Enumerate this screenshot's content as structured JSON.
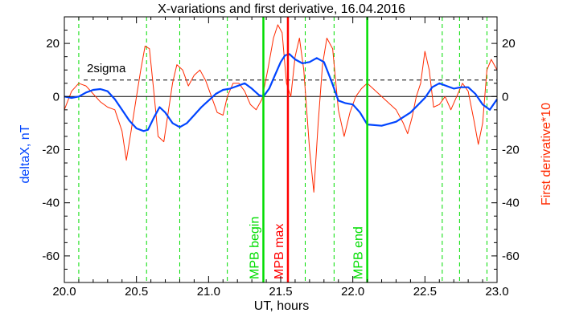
{
  "chart_data": {
    "type": "line",
    "title": "X-variations and first derivative, 16.04.2016",
    "xlabel": "UT, hours",
    "ylabel_left": "deltaX, nT",
    "ylabel_right": "First derivative*10",
    "xlim": [
      20.0,
      23.0
    ],
    "ylim": [
      -70,
      30
    ],
    "x_ticks": [
      20.0,
      20.5,
      21.0,
      21.5,
      22.0,
      22.5,
      23.0
    ],
    "x_tick_labels": [
      "20.0",
      "20.5",
      "21.0",
      "21.5",
      "22.0",
      "22.5",
      "23.0"
    ],
    "y_ticks": [
      20,
      0,
      -20,
      -40,
      -60
    ],
    "y_tick_labels": [
      "20",
      "0",
      "-20",
      "-40",
      "-60"
    ],
    "sigma_level": 6.2,
    "sigma_label": "2sigma",
    "dashed_verticals": [
      20.1,
      20.57,
      20.8,
      21.13,
      21.67,
      21.87,
      22.62,
      22.74,
      22.93
    ],
    "markers": [
      {
        "x": 21.38,
        "label": "MPB begin",
        "color": "#00dd00"
      },
      {
        "x": 21.55,
        "label": "MPB max",
        "color": "#ff0000"
      },
      {
        "x": 22.1,
        "label": "MPB end",
        "color": "#00dd00"
      }
    ],
    "colors": {
      "deltaX": "#0044ff",
      "derivative": "#ff2a00",
      "left_axis_label": "#0044ff",
      "right_axis_label": "#ff2a00",
      "green": "#00dd00",
      "red": "#ff0000"
    },
    "series": [
      {
        "key": "deltaX",
        "x": [
          20.0,
          20.05,
          20.1,
          20.15,
          20.2,
          20.25,
          20.3,
          20.35,
          20.4,
          20.45,
          20.5,
          20.55,
          20.58,
          20.62,
          20.66,
          20.7,
          20.75,
          20.8,
          20.85,
          20.9,
          20.95,
          21.0,
          21.05,
          21.1,
          21.15,
          21.2,
          21.25,
          21.3,
          21.35,
          21.38,
          21.42,
          21.46,
          21.5,
          21.53,
          21.56,
          21.6,
          21.65,
          21.7,
          21.75,
          21.8,
          21.85,
          21.9,
          21.95,
          22.0,
          22.05,
          22.1,
          22.2,
          22.3,
          22.4,
          22.5,
          22.55,
          22.6,
          22.65,
          22.7,
          22.75,
          22.8,
          22.85,
          22.9,
          22.95,
          23.0
        ],
        "y": [
          0,
          -0.5,
          0,
          1.5,
          2.5,
          2.8,
          2.0,
          -1.0,
          -5.0,
          -9.0,
          -12.0,
          -13.0,
          -12.5,
          -8.0,
          -4.0,
          -6.0,
          -10.0,
          -11.5,
          -10.0,
          -7.0,
          -4.0,
          -1.5,
          1.0,
          2.5,
          3.0,
          4.0,
          5.0,
          3.0,
          0.5,
          0.0,
          3.0,
          8.0,
          13.0,
          15.5,
          16.0,
          14.0,
          12.5,
          13.0,
          14.5,
          13.0,
          6.0,
          -1.5,
          -2.5,
          -3.0,
          -6.0,
          -10.5,
          -11.0,
          -9.5,
          -6.0,
          -0.5,
          3.5,
          5.0,
          4.0,
          3.0,
          3.5,
          3.5,
          1.0,
          -3.0,
          -5.0,
          -1.0
        ]
      },
      {
        "key": "derivative",
        "x": [
          20.0,
          20.05,
          20.1,
          20.15,
          20.2,
          20.25,
          20.3,
          20.35,
          20.4,
          20.43,
          20.46,
          20.5,
          20.53,
          20.56,
          20.59,
          20.62,
          20.65,
          20.69,
          20.72,
          20.75,
          20.78,
          20.82,
          20.86,
          20.9,
          20.94,
          20.98,
          21.02,
          21.06,
          21.1,
          21.13,
          21.17,
          21.21,
          21.25,
          21.29,
          21.33,
          21.37,
          21.41,
          21.45,
          21.48,
          21.51,
          21.54,
          21.57,
          21.6,
          21.63,
          21.66,
          21.7,
          21.73,
          21.76,
          21.79,
          21.82,
          21.86,
          21.9,
          21.94,
          21.98,
          22.02,
          22.06,
          22.1,
          22.2,
          22.3,
          22.35,
          22.38,
          22.41,
          22.44,
          22.47,
          22.5,
          22.53,
          22.56,
          22.6,
          22.64,
          22.68,
          22.72,
          22.76,
          22.8,
          22.84,
          22.87,
          22.9,
          22.93,
          22.96,
          23.0
        ],
        "y": [
          -5.0,
          2.0,
          5.0,
          4.0,
          1.0,
          -2.0,
          -4.0,
          -5.0,
          -13.0,
          -24.0,
          -14.0,
          0.0,
          10.0,
          19.0,
          18.0,
          2.0,
          -15.0,
          -17.0,
          -6.0,
          5.0,
          12.0,
          10.0,
          4.0,
          8.0,
          10.0,
          6.0,
          0.0,
          -6.0,
          -7.0,
          0.0,
          5.0,
          5.0,
          2.0,
          -3.0,
          -5.0,
          -1.0,
          10.0,
          22.0,
          27.0,
          24.0,
          5.0,
          0.0,
          15.0,
          22.0,
          10.0,
          -20.0,
          -36.0,
          -10.0,
          12.0,
          22.0,
          18.0,
          -5.0,
          -15.0,
          -6.0,
          0.0,
          3.0,
          5.0,
          0.0,
          -5.0,
          -10.0,
          -14.0,
          -8.0,
          0.0,
          5.0,
          17.0,
          10.0,
          -4.0,
          -3.0,
          0.0,
          -5.0,
          0.0,
          5.0,
          2.0,
          -9.0,
          -18.0,
          -10.0,
          10.0,
          14.0,
          10.0
        ]
      }
    ]
  }
}
